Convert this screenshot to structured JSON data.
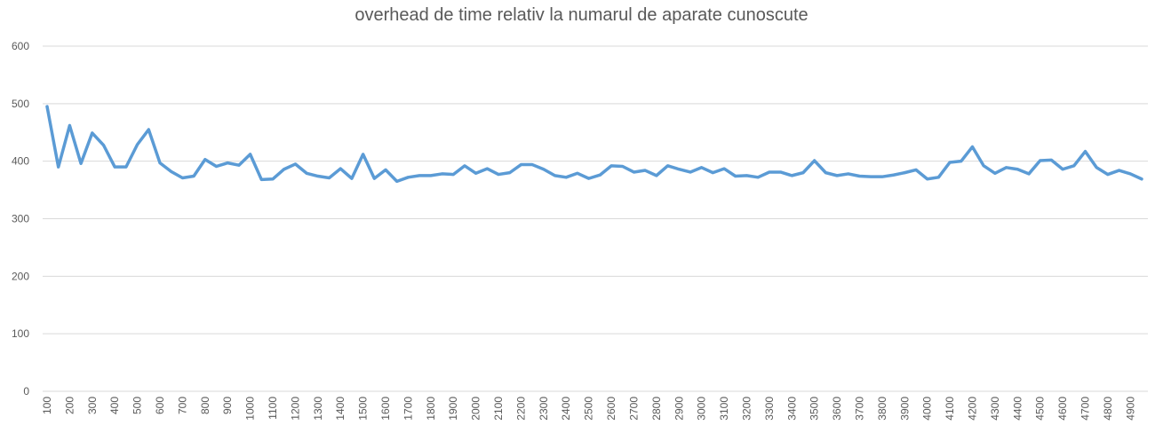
{
  "chart_data": {
    "type": "line",
    "title": "overhead de time relativ la numarul de aparate cunoscute",
    "xlabel": "",
    "ylabel": "",
    "ylim": [
      0,
      600
    ],
    "yticks": [
      0,
      100,
      200,
      300,
      400,
      500,
      600
    ],
    "grid": true,
    "legend": "none",
    "x": [
      100,
      150,
      200,
      250,
      300,
      350,
      400,
      450,
      500,
      550,
      600,
      650,
      700,
      750,
      800,
      850,
      900,
      950,
      1000,
      1050,
      1100,
      1150,
      1200,
      1250,
      1300,
      1350,
      1400,
      1450,
      1500,
      1550,
      1600,
      1650,
      1700,
      1750,
      1800,
      1850,
      1900,
      1950,
      2000,
      2050,
      2100,
      2150,
      2200,
      2250,
      2300,
      2350,
      2400,
      2450,
      2500,
      2550,
      2600,
      2650,
      2700,
      2750,
      2800,
      2850,
      2900,
      2950,
      3000,
      3050,
      3100,
      3150,
      3200,
      3250,
      3300,
      3350,
      3400,
      3450,
      3500,
      3550,
      3600,
      3650,
      3700,
      3750,
      3800,
      3850,
      3900,
      3950,
      4000,
      4050,
      4100,
      4150,
      4200,
      4250,
      4300,
      4350,
      4400,
      4450,
      4500,
      4550,
      4600,
      4650,
      4700,
      4750,
      4800,
      4850,
      4900,
      4950
    ],
    "xtick_labels": [
      "100",
      "200",
      "300",
      "400",
      "500",
      "600",
      "700",
      "800",
      "900",
      "1000",
      "1100",
      "1200",
      "1300",
      "1400",
      "1500",
      "1600",
      "1700",
      "1800",
      "1900",
      "2000",
      "2100",
      "2200",
      "2300",
      "2400",
      "2500",
      "2600",
      "2700",
      "2800",
      "2900",
      "3000",
      "3100",
      "3200",
      "3300",
      "3400",
      "3500",
      "3600",
      "3700",
      "3800",
      "3900",
      "4000",
      "4100",
      "4200",
      "4300",
      "4400",
      "4500",
      "4600",
      "4700",
      "4800",
      "4900"
    ],
    "series": [
      {
        "color": "#5b9bd5",
        "values": [
          495,
          390,
          462,
          396,
          449,
          428,
          390,
          390,
          429,
          455,
          397,
          382,
          371,
          374,
          403,
          391,
          397,
          393,
          412,
          368,
          369,
          386,
          395,
          379,
          374,
          371,
          387,
          370,
          412,
          370,
          385,
          365,
          372,
          375,
          375,
          378,
          377,
          392,
          379,
          387,
          377,
          380,
          394,
          394,
          386,
          375,
          372,
          379,
          370,
          376,
          392,
          391,
          381,
          384,
          375,
          392,
          386,
          381,
          389,
          380,
          387,
          374,
          375,
          372,
          381,
          381,
          375,
          380,
          401,
          380,
          375,
          378,
          374,
          373,
          373,
          376,
          380,
          385,
          369,
          372,
          398,
          400,
          425,
          392,
          379,
          389,
          386,
          378,
          401,
          402,
          386,
          392,
          417,
          389,
          377,
          384,
          378,
          369
        ]
      }
    ]
  }
}
